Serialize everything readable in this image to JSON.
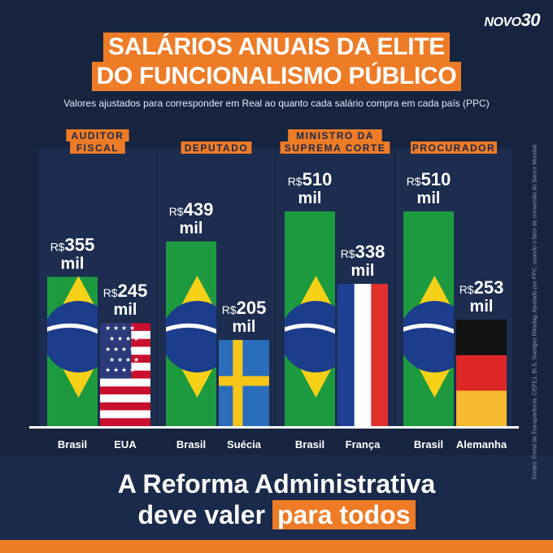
{
  "logo": {
    "part1": "NOVO",
    "part2": "30"
  },
  "title_line1": "SALÁRIOS ANUAIS DA ELITE",
  "title_line2": "DO FUNCIONALISMO PÚBLICO",
  "subtitle": "Valores ajustados para corresponder em Real ao quanto cada salário compra em cada país (PPC)",
  "source_note": "Fontes: Portal da Transparência, CEPEJ, BLS, Sveriges Riksdag. Ajustado por PPC, usando o fator de conversão do Banco Mundial.",
  "bottom": {
    "line1": "A Reforma Administrativa",
    "line2_prefix": "deve valer ",
    "line2_highlight": "para todos"
  },
  "colors": {
    "accent": "#ee7b26",
    "background": "#16243f",
    "panel": "#1c2d4f"
  },
  "chart_data": {
    "type": "bar",
    "unit": "R$ mil",
    "groups": [
      {
        "title": [
          "AUDITOR",
          "FISCAL"
        ],
        "bars": [
          {
            "category": "Brasil",
            "value": 355,
            "label_prefix": "R$",
            "label_value": "355",
            "label_suffix": "mil",
            "flag": "brazil"
          },
          {
            "category": "EUA",
            "value": 245,
            "label_prefix": "R$",
            "label_value": "245",
            "label_suffix": "mil",
            "flag": "usa"
          }
        ]
      },
      {
        "title": [
          "DEPUTADO"
        ],
        "bars": [
          {
            "category": "Brasil",
            "value": 439,
            "label_prefix": "R$",
            "label_value": "439",
            "label_suffix": "mil",
            "flag": "brazil"
          },
          {
            "category": "Suécia",
            "value": 205,
            "label_prefix": "R$",
            "label_value": "205",
            "label_suffix": "mil",
            "flag": "sweden"
          }
        ]
      },
      {
        "title": [
          "MINISTRO DA",
          "SUPREMA CORTE"
        ],
        "bars": [
          {
            "category": "Brasil",
            "value": 510,
            "label_prefix": "R$",
            "label_value": "510",
            "label_suffix": "mil",
            "flag": "brazil"
          },
          {
            "category": "França",
            "value": 338,
            "label_prefix": "R$",
            "label_value": "338",
            "label_suffix": "mil",
            "flag": "france"
          }
        ]
      },
      {
        "title": [
          "PROCURADOR"
        ],
        "bars": [
          {
            "category": "Brasil",
            "value": 510,
            "label_prefix": "R$",
            "label_value": "510",
            "label_suffix": "mil",
            "flag": "brazil"
          },
          {
            "category": "Alemanha",
            "value": 253,
            "label_prefix": "R$",
            "label_value": "253",
            "label_suffix": "mil",
            "flag": "germany"
          }
        ]
      }
    ]
  }
}
